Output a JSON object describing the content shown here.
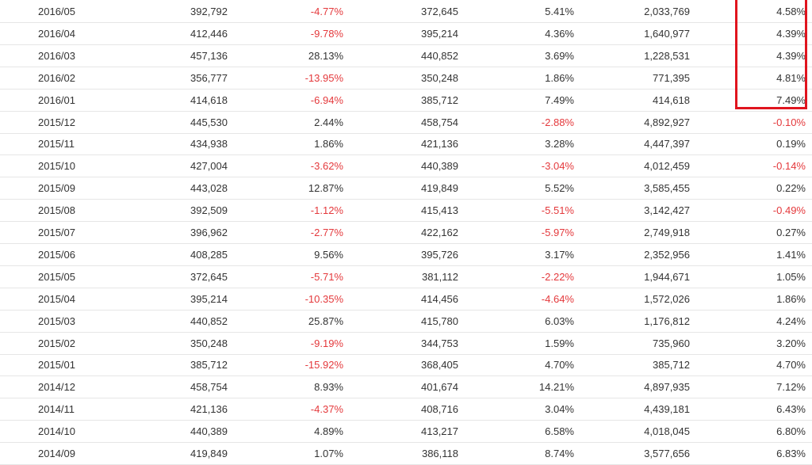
{
  "table": {
    "rows": [
      [
        "2016/05",
        "392,792",
        "-4.77%",
        "372,645",
        "5.41%",
        "2,033,769",
        "4.58%"
      ],
      [
        "2016/04",
        "412,446",
        "-9.78%",
        "395,214",
        "4.36%",
        "1,640,977",
        "4.39%"
      ],
      [
        "2016/03",
        "457,136",
        "28.13%",
        "440,852",
        "3.69%",
        "1,228,531",
        "4.39%"
      ],
      [
        "2016/02",
        "356,777",
        "-13.95%",
        "350,248",
        "1.86%",
        "771,395",
        "4.81%"
      ],
      [
        "2016/01",
        "414,618",
        "-6.94%",
        "385,712",
        "7.49%",
        "414,618",
        "7.49%"
      ],
      [
        "2015/12",
        "445,530",
        "2.44%",
        "458,754",
        "-2.88%",
        "4,892,927",
        "-0.10%"
      ],
      [
        "2015/11",
        "434,938",
        "1.86%",
        "421,136",
        "3.28%",
        "4,447,397",
        "0.19%"
      ],
      [
        "2015/10",
        "427,004",
        "-3.62%",
        "440,389",
        "-3.04%",
        "4,012,459",
        "-0.14%"
      ],
      [
        "2015/09",
        "443,028",
        "12.87%",
        "419,849",
        "5.52%",
        "3,585,455",
        "0.22%"
      ],
      [
        "2015/08",
        "392,509",
        "-1.12%",
        "415,413",
        "-5.51%",
        "3,142,427",
        "-0.49%"
      ],
      [
        "2015/07",
        "396,962",
        "-2.77%",
        "422,162",
        "-5.97%",
        "2,749,918",
        "0.27%"
      ],
      [
        "2015/06",
        "408,285",
        "9.56%",
        "395,726",
        "3.17%",
        "2,352,956",
        "1.41%"
      ],
      [
        "2015/05",
        "372,645",
        "-5.71%",
        "381,112",
        "-2.22%",
        "1,944,671",
        "1.05%"
      ],
      [
        "2015/04",
        "395,214",
        "-10.35%",
        "414,456",
        "-4.64%",
        "1,572,026",
        "1.86%"
      ],
      [
        "2015/03",
        "440,852",
        "25.87%",
        "415,780",
        "6.03%",
        "1,176,812",
        "4.24%"
      ],
      [
        "2015/02",
        "350,248",
        "-9.19%",
        "344,753",
        "1.59%",
        "735,960",
        "3.20%"
      ],
      [
        "2015/01",
        "385,712",
        "-15.92%",
        "368,405",
        "4.70%",
        "385,712",
        "4.70%"
      ],
      [
        "2014/12",
        "458,754",
        "8.93%",
        "401,674",
        "14.21%",
        "4,897,935",
        "7.12%"
      ],
      [
        "2014/11",
        "421,136",
        "-4.37%",
        "408,716",
        "3.04%",
        "4,439,181",
        "6.43%"
      ],
      [
        "2014/10",
        "440,389",
        "4.89%",
        "413,217",
        "6.58%",
        "4,018,045",
        "6.80%"
      ],
      [
        "2014/09",
        "419,849",
        "1.07%",
        "386,118",
        "8.74%",
        "3,577,656",
        "6.83%"
      ]
    ]
  }
}
